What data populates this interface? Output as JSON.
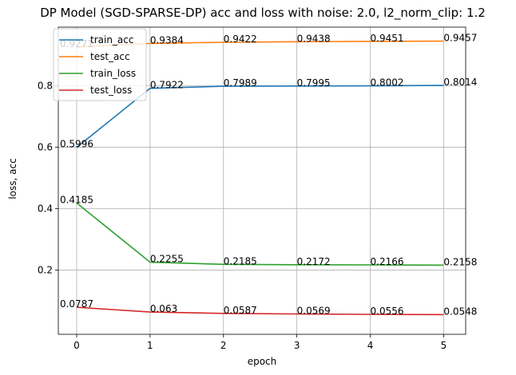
{
  "chart_data": {
    "type": "line",
    "title": "DP Model (SGD-SPARSE-DP) acc and loss with noise: 2.0, l2_norm_clip: 1.2",
    "xlabel": "epoch",
    "ylabel": "loss, acc",
    "x": [
      0,
      1,
      2,
      3,
      4,
      5
    ],
    "xlim": [
      -0.25,
      5.3
    ],
    "ylim": [
      -0.0095,
      0.9915
    ],
    "xticks": [
      "0",
      "1",
      "2",
      "3",
      "4",
      "5"
    ],
    "yticks": [
      {
        "value": 0.2,
        "label": "0.2"
      },
      {
        "value": 0.4,
        "label": "0.4"
      },
      {
        "value": 0.6,
        "label": "0.6"
      },
      {
        "value": 0.8,
        "label": "0.8"
      }
    ],
    "grid": true,
    "legend_position": "top-left",
    "series": [
      {
        "name": "train_acc",
        "color": "#1f77b4",
        "values": [
          0.5996,
          0.7922,
          0.7989,
          0.7995,
          0.8002,
          0.8014
        ],
        "labels": [
          "0.5996",
          "0.7922",
          "0.7989",
          "0.7995",
          "0.8002",
          "0.8014"
        ]
      },
      {
        "name": "test_acc",
        "color": "#ff7f0e",
        "values": [
          0.9271,
          0.9384,
          0.9422,
          0.9438,
          0.9451,
          0.9457
        ],
        "labels": [
          "0.9271",
          "0.9384",
          "0.9422",
          "0.9438",
          "0.9451",
          "0.9457"
        ]
      },
      {
        "name": "train_loss",
        "color": "#2ca02c",
        "values": [
          0.4185,
          0.2255,
          0.2185,
          0.2172,
          0.2166,
          0.2158
        ],
        "labels": [
          "0.4185",
          "0.2255",
          "0.2185",
          "0.2172",
          "0.2166",
          "0.2158"
        ]
      },
      {
        "name": "test_loss",
        "color": "#d62728",
        "values": [
          0.0787,
          0.063,
          0.0587,
          0.0569,
          0.0556,
          0.0548
        ],
        "labels": [
          "0.0787",
          "0.063",
          "0.0587",
          "0.0569",
          "0.0556",
          "0.0548"
        ]
      }
    ]
  }
}
